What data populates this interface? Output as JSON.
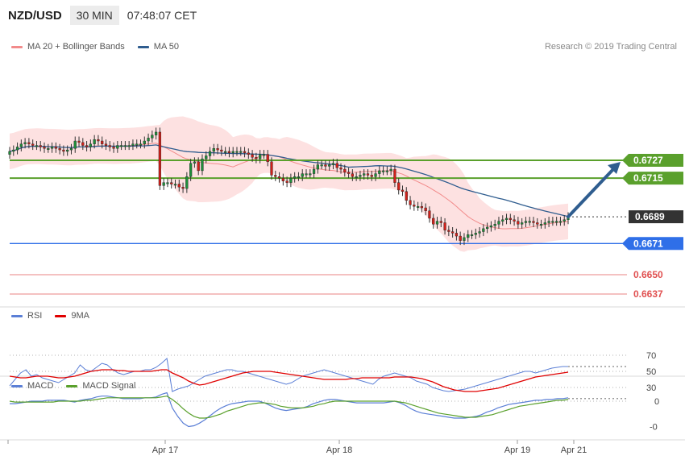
{
  "header": {
    "symbol": "NZD/USD",
    "timeframe": "30 MIN",
    "time": "07:48:07 CET"
  },
  "credit": "Research © 2019 Trading Central",
  "legend_price": [
    {
      "label": "MA 20 + Bollinger Bands",
      "color": "#f28b8b"
    },
    {
      "label": "MA 50",
      "color": "#2f5d8f"
    }
  ],
  "legend_rsi": [
    {
      "label": "RSI",
      "color": "#5b7fd6"
    },
    {
      "label": "9MA",
      "color": "#e00000"
    }
  ],
  "legend_macd": [
    {
      "label": "MACD",
      "color": "#5b7fd6"
    },
    {
      "label": "MACD Signal",
      "color": "#5aa02c"
    }
  ],
  "chart_data": [
    {
      "type": "candlestick",
      "panel": "price",
      "x_labels": [
        "Apr 17",
        "Apr 18",
        "Apr 19",
        "Apr 21"
      ],
      "current_price": "0.6689",
      "levels": [
        {
          "label": "0.6727",
          "value": 0.6727,
          "kind": "resistance",
          "color": "#5aa02c"
        },
        {
          "label": "0.6715",
          "value": 0.6715,
          "kind": "resistance",
          "color": "#5aa02c"
        },
        {
          "label": "0.6689",
          "value": 0.6689,
          "kind": "current",
          "color": "#333333"
        },
        {
          "label": "0.6671",
          "value": 0.6671,
          "kind": "pivot",
          "color": "#2f6fe8"
        },
        {
          "label": "0.6650",
          "value": 0.665,
          "kind": "support",
          "color": "#e05050"
        },
        {
          "label": "0.6637",
          "value": 0.6637,
          "kind": "support",
          "color": "#e05050"
        }
      ],
      "forecast": {
        "from": 0.6689,
        "to": 0.6727,
        "direction": "up"
      },
      "closes": [
        0.6733,
        0.6734,
        0.6736,
        0.6738,
        0.6739,
        0.6738,
        0.6737,
        0.6737,
        0.6736,
        0.6735,
        0.6735,
        0.6736,
        0.6735,
        0.6734,
        0.6733,
        0.6734,
        0.6735,
        0.674,
        0.6739,
        0.6737,
        0.6736,
        0.6738,
        0.6741,
        0.674,
        0.6738,
        0.6737,
        0.6736,
        0.6735,
        0.6737,
        0.6737,
        0.6737,
        0.6737,
        0.6738,
        0.6738,
        0.6738,
        0.674,
        0.6742,
        0.6744,
        0.6746,
        0.671,
        0.6712,
        0.6712,
        0.6711,
        0.6711,
        0.6709,
        0.6708,
        0.6716,
        0.6725,
        0.6726,
        0.672,
        0.6728,
        0.673,
        0.6733,
        0.6735,
        0.6734,
        0.6733,
        0.6733,
        0.6732,
        0.6733,
        0.6733,
        0.6733,
        0.6732,
        0.6731,
        0.6729,
        0.6728,
        0.6731,
        0.6731,
        0.6726,
        0.6717,
        0.6716,
        0.6715,
        0.6713,
        0.6712,
        0.6715,
        0.6716,
        0.6716,
        0.6718,
        0.6718,
        0.6718,
        0.6721,
        0.6724,
        0.6724,
        0.6723,
        0.6724,
        0.6725,
        0.6722,
        0.6721,
        0.6719,
        0.6718,
        0.6716,
        0.6716,
        0.6717,
        0.6718,
        0.6717,
        0.6716,
        0.6718,
        0.672,
        0.672,
        0.672,
        0.6721,
        0.6712,
        0.6707,
        0.6706,
        0.67,
        0.6697,
        0.6696,
        0.6696,
        0.6695,
        0.6693,
        0.6688,
        0.6684,
        0.6686,
        0.6685,
        0.668,
        0.6679,
        0.6678,
        0.6676,
        0.6673,
        0.6675,
        0.6677,
        0.6677,
        0.6678,
        0.6679,
        0.6681,
        0.6682,
        0.6683,
        0.6684,
        0.6686,
        0.6687,
        0.6688,
        0.6687,
        0.6686,
        0.6684,
        0.6685,
        0.6686,
        0.6686,
        0.6685,
        0.6684,
        0.6684,
        0.6685,
        0.6686,
        0.6686,
        0.6686,
        0.6686,
        0.6687,
        0.6689
      ]
    },
    {
      "type": "line",
      "panel": "rsi",
      "y_ticks": [
        70,
        50,
        30
      ],
      "series": [
        {
          "name": "RSI",
          "values": [
            32,
            40,
            48,
            52,
            44,
            46,
            42,
            40,
            38,
            36,
            40,
            44,
            48,
            58,
            52,
            50,
            55,
            60,
            58,
            52,
            48,
            46,
            48,
            50,
            50,
            52,
            52,
            55,
            60,
            66,
            25,
            28,
            30,
            32,
            36,
            40,
            44,
            46,
            48,
            50,
            52,
            52,
            50,
            50,
            48,
            46,
            44,
            42,
            40,
            38,
            36,
            34,
            36,
            40,
            44,
            46,
            48,
            50,
            52,
            50,
            48,
            46,
            44,
            42,
            40,
            38,
            36,
            34,
            40,
            44,
            46,
            48,
            46,
            44,
            42,
            38,
            36,
            34,
            30,
            28,
            26,
            25,
            26,
            27,
            28,
            30,
            32,
            34,
            36,
            38,
            40,
            42,
            44,
            46,
            48,
            50,
            50,
            48,
            50,
            52,
            54,
            55,
            56,
            56
          ]
        },
        {
          "name": "9MA",
          "values": [
            44,
            43,
            42,
            42,
            43,
            44,
            44,
            44,
            43,
            42,
            42,
            43,
            44,
            46,
            48,
            50,
            51,
            52,
            52,
            52,
            51,
            51,
            50,
            50,
            50,
            50,
            50,
            51,
            52,
            52,
            48,
            45,
            42,
            38,
            35,
            33,
            34,
            36,
            38,
            40,
            42,
            44,
            46,
            48,
            49,
            50,
            50,
            50,
            50,
            49,
            48,
            47,
            46,
            45,
            44,
            43,
            42,
            41,
            40,
            40,
            40,
            40,
            40,
            41,
            41,
            42,
            42,
            42,
            42,
            42,
            42,
            43,
            43,
            43,
            43,
            42,
            41,
            39,
            37,
            34,
            31,
            29,
            27,
            26,
            25,
            25,
            25,
            26,
            27,
            28,
            29,
            31,
            33,
            35,
            37,
            39,
            41,
            43,
            44,
            45,
            46,
            47,
            48,
            49
          ]
        }
      ]
    },
    {
      "type": "line",
      "panel": "macd",
      "y_ticks": [
        "0",
        "-0"
      ],
      "series": [
        {
          "name": "MACD",
          "values": [
            -0.3,
            -0.3,
            -0.2,
            -0.1,
            0,
            0,
            0,
            0.1,
            0.1,
            0.1,
            0.1,
            0.0,
            -0.1,
            0.1,
            0.2,
            0.3,
            0.5,
            0.6,
            0.6,
            0.5,
            0.4,
            0.3,
            0.3,
            0.3,
            0.3,
            0.4,
            0.4,
            0.5,
            0.8,
            1.0,
            -0.8,
            -1.8,
            -2.6,
            -3.0,
            -2.9,
            -2.6,
            -2.2,
            -1.7,
            -1.2,
            -0.8,
            -0.5,
            -0.3,
            -0.2,
            -0.1,
            0,
            0,
            0,
            -0.2,
            -0.5,
            -0.8,
            -1.0,
            -1.1,
            -1.0,
            -0.9,
            -0.8,
            -0.6,
            -0.3,
            -0.1,
            0.1,
            0.2,
            0.2,
            0.1,
            0,
            -0.1,
            -0.2,
            -0.2,
            -0.2,
            -0.2,
            -0.2,
            -0.2,
            -0.1,
            0,
            -0.2,
            -0.5,
            -0.9,
            -1.2,
            -1.4,
            -1.5,
            -1.6,
            -1.7,
            -1.8,
            -1.9,
            -2.0,
            -2.0,
            -2.0,
            -1.9,
            -1.8,
            -1.6,
            -1.3,
            -1.1,
            -0.8,
            -0.6,
            -0.4,
            -0.3,
            -0.2,
            -0.1,
            0,
            0.1,
            0.1,
            0.2,
            0.2,
            0.3,
            0.3,
            0.4
          ]
        },
        {
          "name": "MACD Signal",
          "values": [
            0,
            -0.1,
            -0.1,
            -0.1,
            -0.1,
            -0.1,
            -0.1,
            -0.1,
            -0.1,
            0,
            0,
            0,
            0,
            0,
            0.1,
            0.1,
            0.2,
            0.3,
            0.4,
            0.4,
            0.4,
            0.4,
            0.4,
            0.4,
            0.4,
            0.4,
            0.4,
            0.4,
            0.5,
            0.6,
            0.2,
            -0.3,
            -0.9,
            -1.4,
            -1.8,
            -2.0,
            -2.0,
            -1.9,
            -1.7,
            -1.5,
            -1.2,
            -1.0,
            -0.8,
            -0.6,
            -0.4,
            -0.3,
            -0.2,
            -0.2,
            -0.3,
            -0.4,
            -0.6,
            -0.7,
            -0.8,
            -0.8,
            -0.8,
            -0.7,
            -0.6,
            -0.4,
            -0.3,
            -0.1,
            0,
            0,
            0,
            0,
            0,
            0,
            0,
            0,
            0,
            0,
            0,
            0,
            -0.1,
            -0.2,
            -0.4,
            -0.6,
            -0.8,
            -1.0,
            -1.2,
            -1.4,
            -1.5,
            -1.6,
            -1.7,
            -1.8,
            -1.9,
            -1.9,
            -1.9,
            -1.8,
            -1.7,
            -1.6,
            -1.4,
            -1.2,
            -1.0,
            -0.8,
            -0.6,
            -0.5,
            -0.4,
            -0.3,
            -0.2,
            -0.1,
            0,
            0.1,
            0.1,
            0.2
          ]
        }
      ]
    }
  ]
}
